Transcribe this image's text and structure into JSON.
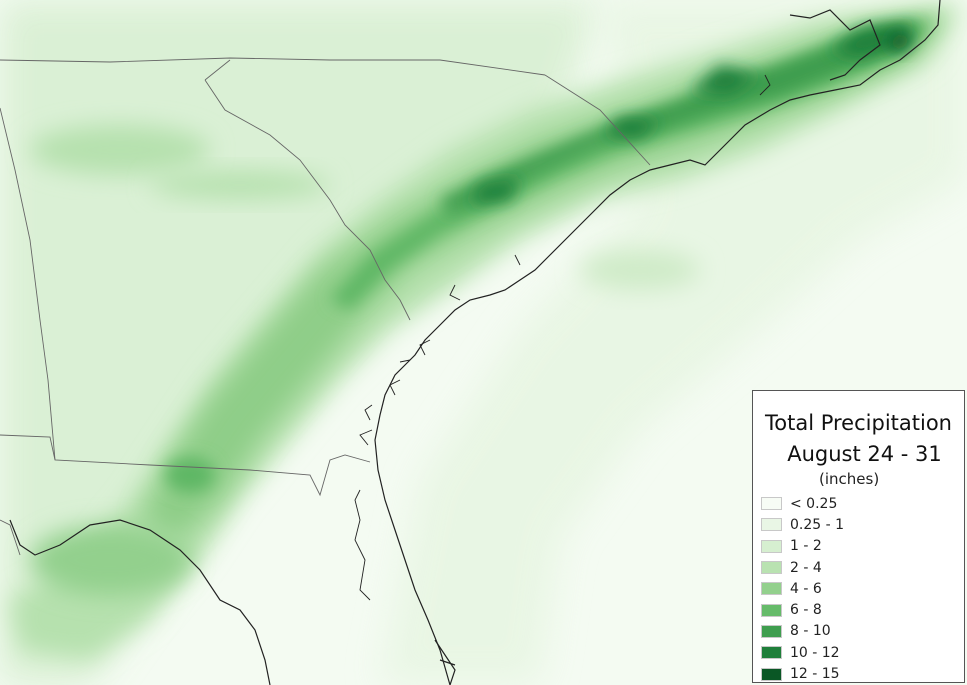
{
  "legend": {
    "title": "Total Precipitation",
    "subtitle": "August 24 - 31",
    "units": "(inches)",
    "classes": [
      {
        "label": "< 0.25",
        "color": "#f7fcf5"
      },
      {
        "label": "0.25 - 1",
        "color": "#e9f6e5"
      },
      {
        "label": "1 - 2",
        "color": "#d6efd0"
      },
      {
        "label": "2 - 4",
        "color": "#b9e2b1"
      },
      {
        "label": "4 - 6",
        "color": "#93d08d"
      },
      {
        "label": "6 - 8",
        "color": "#66bb6a"
      },
      {
        "label": "8 - 10",
        "color": "#3f9e4f"
      },
      {
        "label": "10 - 12",
        "color": "#1f7f3a"
      },
      {
        "label": "12 - 15",
        "color": "#0a5725"
      }
    ]
  },
  "colors": {
    "background": "#f4fbf2",
    "boundary_lines": "#666666",
    "coastline": "#222222"
  }
}
